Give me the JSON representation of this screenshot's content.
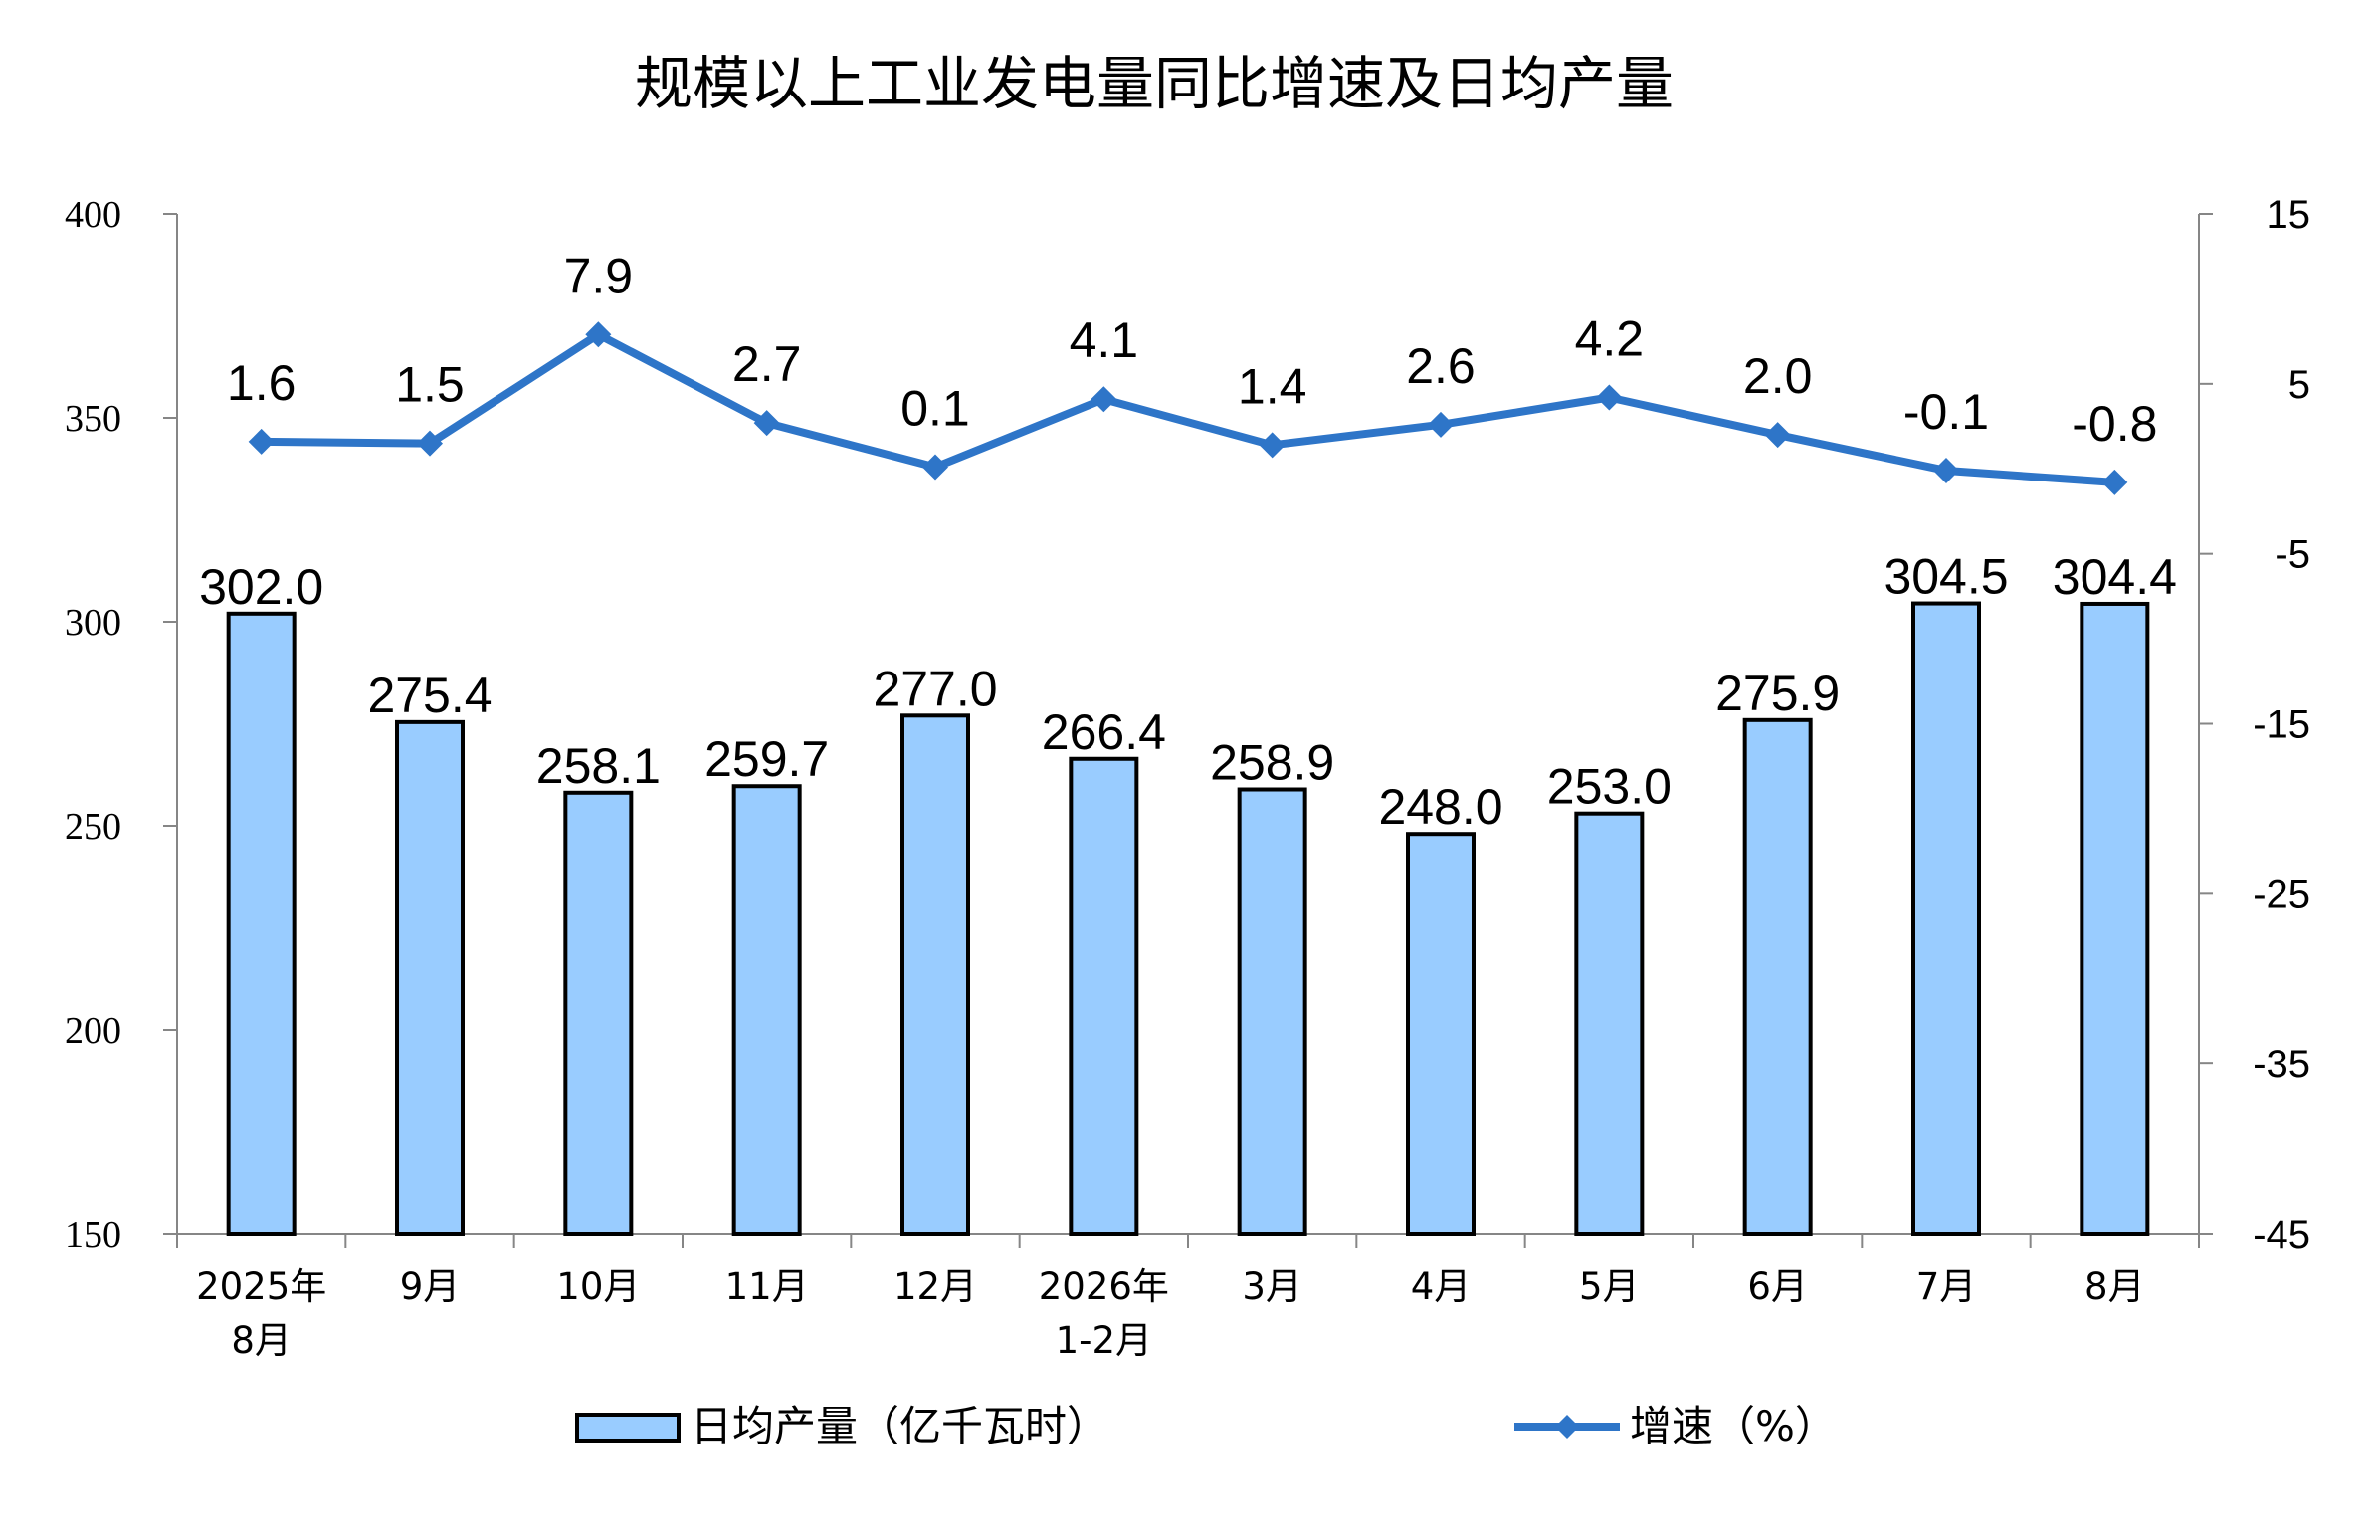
{
  "chart_data": {
    "type": "bar",
    "title": "规模以上工业发电量同比增速及日均产量",
    "categories": [
      [
        "2025年",
        "8月"
      ],
      [
        "9月"
      ],
      [
        "10月"
      ],
      [
        "11月"
      ],
      [
        "12月"
      ],
      [
        "2026年",
        "1-2月"
      ],
      [
        "3月"
      ],
      [
        "4月"
      ],
      [
        "5月"
      ],
      [
        "6月"
      ],
      [
        "7月"
      ],
      [
        "8月"
      ]
    ],
    "series": [
      {
        "name": "日均产量（亿千瓦时）",
        "type": "bar",
        "axis": "left",
        "values": [
          302.0,
          275.4,
          258.1,
          259.7,
          277.0,
          266.4,
          258.9,
          248.0,
          253.0,
          275.9,
          304.5,
          304.4
        ],
        "labels": [
          "302.0",
          "275.4",
          "258.1",
          "259.7",
          "277.0",
          "266.4",
          "258.9",
          "248.0",
          "253.0",
          "275.9",
          "304.5",
          "304.4"
        ],
        "color": "#99ccff"
      },
      {
        "name": "增速（%）",
        "type": "line",
        "axis": "right",
        "values": [
          1.6,
          1.5,
          7.9,
          2.7,
          0.1,
          4.1,
          1.4,
          2.6,
          4.2,
          2.0,
          -0.1,
          -0.8
        ],
        "labels": [
          "1.6",
          "1.5",
          "7.9",
          "2.7",
          "0.1",
          "4.1",
          "1.4",
          "2.6",
          "4.2",
          "2.0",
          "-0.1",
          "-0.8"
        ],
        "color": "#2e75c8"
      }
    ],
    "y_left": {
      "min": 150,
      "max": 400,
      "ticks": [
        150,
        200,
        250,
        300,
        350,
        400
      ]
    },
    "y_right": {
      "min": -45,
      "max": 15,
      "ticks": [
        -45,
        -35,
        -25,
        -15,
        -5,
        5,
        15
      ]
    },
    "grid": false,
    "legend_position": "bottom"
  }
}
